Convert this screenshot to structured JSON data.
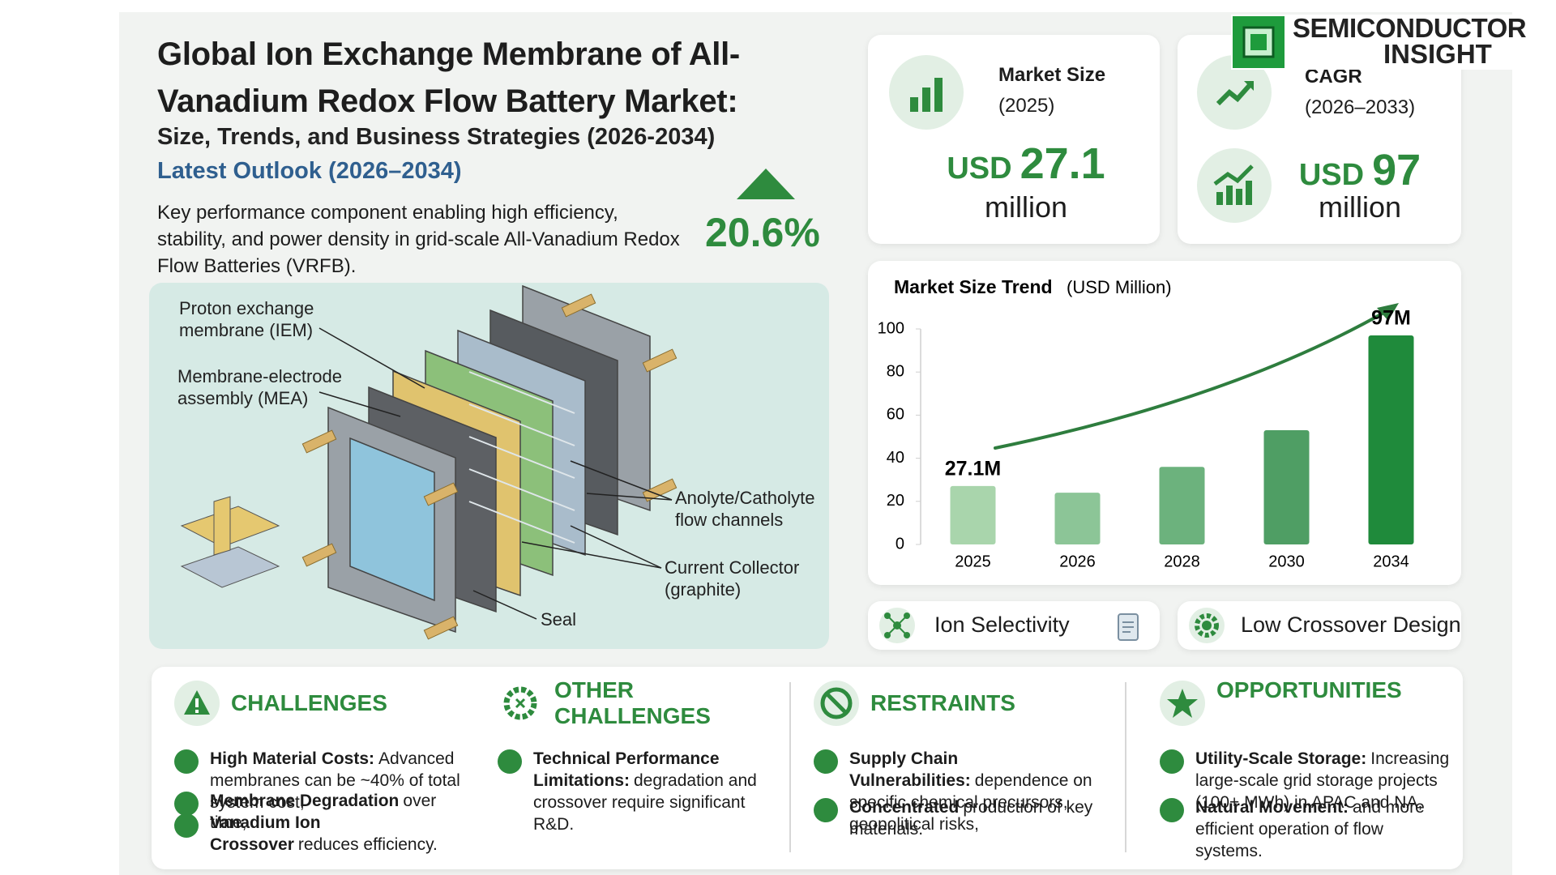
{
  "header": {
    "title": "Global Ion Exchange Membrane of All-Vanadium Redox Flow Battery Market:",
    "subtitle": "Size, Trends, and Business Strategies (2026-2034)",
    "outlook": "Latest Outlook (2026–2034)",
    "description": "Key performance component enabling high efficiency, stability, and power density in grid-scale All-Vanadium Redox Flow Batteries (VRFB).",
    "growth": "20.6%"
  },
  "logo": {
    "line1": "SEMICONDUCTOR",
    "line2": "INSIGHT"
  },
  "cards": {
    "market_size": {
      "label": "Market Size",
      "period": "(2025)",
      "currency": "USD",
      "value": 27.1,
      "unit": "million"
    },
    "cagr": {
      "label": "CAGR",
      "period": "(2026–2033)",
      "currency": "USD",
      "value": 97,
      "unit": "million"
    }
  },
  "diagram": {
    "labels": [
      "Proton exchange membrane (IEM)",
      "Membrane-electrode assembly (MEA)",
      "Anolyte/Catholyte flow channels",
      "Current Collector (graphite)",
      "Seal"
    ]
  },
  "chart_data": {
    "type": "bar",
    "title": "Market Size Trend",
    "unit_label": "(USD Million)",
    "categories": [
      "2025",
      "2026",
      "2028",
      "2030",
      "2034"
    ],
    "values": [
      27.1,
      24,
      36,
      53,
      97
    ],
    "value_labels": [
      "27.1M",
      null,
      null,
      null,
      "97M"
    ],
    "colors": [
      "#a9d5ac",
      "#8cc597",
      "#6cb27d",
      "#4f9e64",
      "#1f8a3b"
    ],
    "ylim": [
      0,
      100
    ],
    "yticks": [
      0,
      20,
      40,
      60,
      80,
      100
    ],
    "grid": false
  },
  "features": [
    "Ion Selectivity",
    "Low Crossover Design"
  ],
  "sections": [
    {
      "title": "CHALLENGES",
      "items": [
        {
          "bold": "High Material Costs:",
          "text": "Advanced membranes can be ~40% of total system cost,"
        },
        {
          "bold": "Membrane Degradation",
          "text": "over time,"
        },
        {
          "bold": "Vanadium Ion Crossover",
          "text": "reduces efficiency."
        }
      ]
    },
    {
      "title": "OTHER CHALLENGES",
      "items": [
        {
          "bold": "Technical Performance Limitations:",
          "text": "degradation and crossover require significant R&D."
        }
      ]
    },
    {
      "title": "RESTRAINTS",
      "items": [
        {
          "bold": "Supply Chain Vulnerabilities:",
          "text": "dependence on specific chemical precursors, geopolitical risks,"
        },
        {
          "bold": "Concentrated",
          "text": "production of key materials."
        }
      ]
    },
    {
      "title": "OPPORTUNITIES",
      "items": [
        {
          "bold": "Utility-Scale Storage:",
          "text": "Increasing large-scale grid storage projects (100+ MWh) in APAC and NA,"
        },
        {
          "bold": "Natural Movement:",
          "text": "and more efficient operation of flow systems."
        }
      ]
    }
  ]
}
